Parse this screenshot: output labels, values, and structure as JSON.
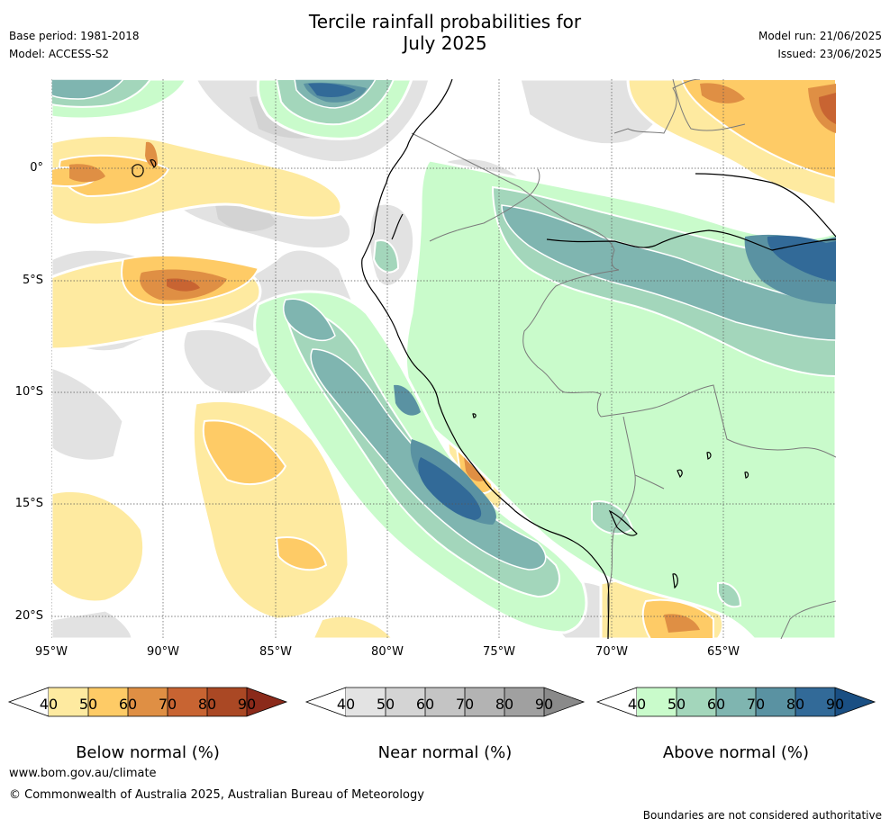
{
  "title_line1": "Tercile rainfall probabilities for",
  "title_line2": "July 2025",
  "meta_left": [
    "Base period: 1981-2018",
    "Model: ACCESS-S2"
  ],
  "meta_right": [
    "Model run: 21/06/2025",
    "Issued: 23/06/2025"
  ],
  "lat_labels": [
    "0°",
    "5°S",
    "10°S",
    "15°S",
    "20°S"
  ],
  "lon_labels": [
    "95°W",
    "90°W",
    "85°W",
    "80°W",
    "75°W",
    "70°W",
    "65°W"
  ],
  "legends": [
    {
      "title": "Below normal (%)",
      "ticks": [
        "40",
        "50",
        "60",
        "70",
        "80",
        "90"
      ],
      "colors": [
        "#ffffff",
        "#feeaa0",
        "#fecb66",
        "#df8f44",
        "#c86432",
        "#aa4824",
        "#8b2a1a"
      ]
    },
    {
      "title": "Near normal (%)",
      "ticks": [
        "40",
        "50",
        "60",
        "70",
        "80",
        "90"
      ],
      "colors": [
        "#ffffff",
        "#e3e3e3",
        "#d4d4d4",
        "#c4c4c4",
        "#b3b3b3",
        "#a0a0a0",
        "#8a8a8a"
      ]
    },
    {
      "title": "Above normal (%)",
      "ticks": [
        "40",
        "50",
        "60",
        "70",
        "80",
        "90"
      ],
      "colors": [
        "#ffffff",
        "#c9fbcb",
        "#a3d6bb",
        "#7fb5b0",
        "#5a92a2",
        "#326a98",
        "#1a4f83"
      ]
    }
  ],
  "footer_url": "www.bom.gov.au/climate",
  "footer_copyright": "© Commonwealth of Australia 2025, Australian Bureau of Meteorology",
  "disclaimer": "Boundaries are not considered authoritative"
}
